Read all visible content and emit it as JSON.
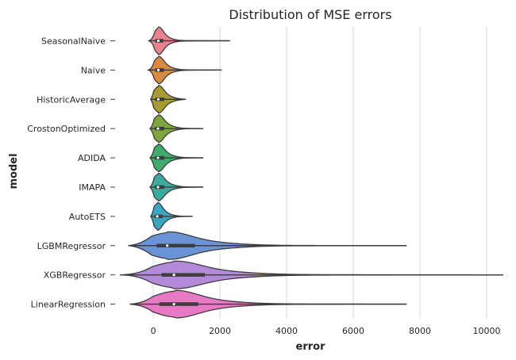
{
  "chart_data": {
    "type": "violin",
    "orientation": "horizontal",
    "title": "Distribution of MSE errors",
    "xlabel": "error",
    "ylabel": "model",
    "xlim": [
      -1050,
      10500
    ],
    "x_ticks": [
      0,
      2000,
      4000,
      6000,
      8000,
      10000
    ],
    "grid": "vertical",
    "categories": [
      "SeasonalNaive",
      "Naive",
      "HistoricAverage",
      "CrostonOptimized",
      "ADIDA",
      "IMAPA",
      "AutoETS",
      "LGBMRegressor",
      "XGBRegressor",
      "LinearRegression"
    ],
    "series": [
      {
        "category": "SeasonalNaive",
        "color": "#e8828c",
        "min": -150,
        "max": 2300,
        "q1": 60,
        "median": 150,
        "q3": 300
      },
      {
        "category": "Naive",
        "color": "#d98a3e",
        "min": -150,
        "max": 2050,
        "q1": 60,
        "median": 150,
        "q3": 320
      },
      {
        "category": "HistoricAverage",
        "color": "#a89b2f",
        "min": -80,
        "max": 980,
        "q1": 60,
        "median": 150,
        "q3": 330
      },
      {
        "category": "CrostonOptimized",
        "color": "#7fa63a",
        "min": -100,
        "max": 1500,
        "q1": 50,
        "median": 140,
        "q3": 330
      },
      {
        "category": "ADIDA",
        "color": "#3eab6f",
        "min": -100,
        "max": 1500,
        "q1": 50,
        "median": 140,
        "q3": 330
      },
      {
        "category": "IMAPA",
        "color": "#3bab9d",
        "min": -100,
        "max": 1500,
        "q1": 50,
        "median": 140,
        "q3": 330
      },
      {
        "category": "AutoETS",
        "color": "#3aa6c3",
        "min": -80,
        "max": 1180,
        "q1": 40,
        "median": 120,
        "q3": 280
      },
      {
        "category": "LGBMRegressor",
        "color": "#6b94d6",
        "min": -750,
        "max": 7600,
        "q1": 100,
        "median": 420,
        "q3": 1250
      },
      {
        "category": "XGBRegressor",
        "color": "#b38ad8",
        "min": -1000,
        "max": 10500,
        "q1": 250,
        "median": 620,
        "q3": 1550
      },
      {
        "category": "LinearRegression",
        "color": "#e879c4",
        "min": -700,
        "max": 7600,
        "q1": 180,
        "median": 620,
        "q3": 1350
      }
    ]
  }
}
